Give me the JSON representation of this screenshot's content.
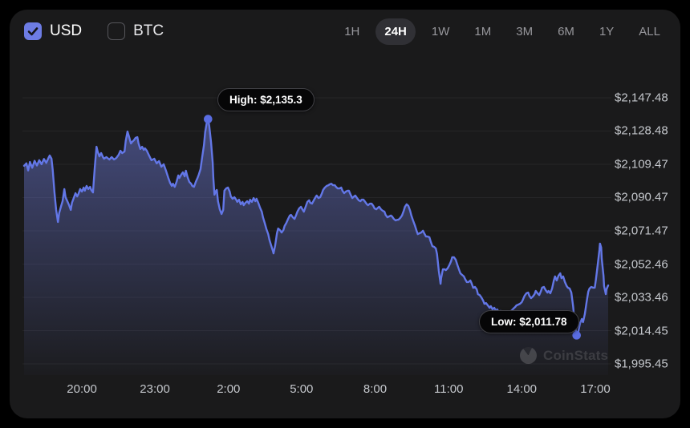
{
  "colors": {
    "page_bg": "#000000",
    "card_bg": "#1a1a1b",
    "accent": "#6d7ce4",
    "line": "#6377e7",
    "grid": "#252527",
    "axis_text": "#c4c7cc"
  },
  "header": {
    "currency_toggles": [
      {
        "label": "USD",
        "checked": true
      },
      {
        "label": "BTC",
        "checked": false
      }
    ],
    "range_buttons": [
      "1H",
      "24H",
      "1W",
      "1M",
      "3M",
      "6M",
      "1Y",
      "ALL"
    ],
    "active_range": "24H"
  },
  "watermark": {
    "text": "CoinStats"
  },
  "chart_data": {
    "type": "area",
    "grid": true,
    "legend": false,
    "y_axis": {
      "side": "right",
      "min": 1995.45,
      "max": 2147.48,
      "unit": "$"
    },
    "x_axis": {
      "window": "24H"
    },
    "y_ticks": [
      {
        "label": "$2,147.48",
        "value": 2147.48
      },
      {
        "label": "$2,128.48",
        "value": 2128.48
      },
      {
        "label": "$2,109.47",
        "value": 2109.47
      },
      {
        "label": "$2,090.47",
        "value": 2090.47
      },
      {
        "label": "$2,071.47",
        "value": 2071.47
      },
      {
        "label": "$2,052.46",
        "value": 2052.46
      },
      {
        "label": "$2,033.46",
        "value": 2033.46
      },
      {
        "label": "$2,014.45",
        "value": 2014.45
      },
      {
        "label": "$1,995.45",
        "value": 1995.45
      }
    ],
    "x_ticks": [
      {
        "label": "20:00",
        "f": 0.099
      },
      {
        "label": "23:00",
        "f": 0.224
      },
      {
        "label": "2:00",
        "f": 0.35
      },
      {
        "label": "5:00",
        "f": 0.475
      },
      {
        "label": "8:00",
        "f": 0.601
      },
      {
        "label": "11:00",
        "f": 0.727
      },
      {
        "label": "14:00",
        "f": 0.852
      },
      {
        "label": "17:00",
        "f": 0.978
      }
    ],
    "markers": [
      {
        "kind": "high",
        "label": "High: $2,135.3",
        "value": 2135.3,
        "f": 0.315
      },
      {
        "kind": "low",
        "label": "Low: $2,011.78",
        "value": 2011.78,
        "f": 0.946
      }
    ],
    "points": [
      [
        0.0,
        2108.6
      ],
      [
        0.004,
        2110.0
      ],
      [
        0.007,
        2106.0
      ],
      [
        0.01,
        2110.8
      ],
      [
        0.014,
        2107.5
      ],
      [
        0.018,
        2111.5
      ],
      [
        0.022,
        2108.8
      ],
      [
        0.026,
        2111.8
      ],
      [
        0.03,
        2109.5
      ],
      [
        0.034,
        2112.5
      ],
      [
        0.038,
        2110.3
      ],
      [
        0.042,
        2113.3
      ],
      [
        0.044,
        2114.5
      ],
      [
        0.047,
        2112.7
      ],
      [
        0.049,
        2106.3
      ],
      [
        0.052,
        2093.4
      ],
      [
        0.055,
        2083.4
      ],
      [
        0.058,
        2076.5
      ],
      [
        0.06,
        2081.5
      ],
      [
        0.063,
        2085.2
      ],
      [
        0.066,
        2088.4
      ],
      [
        0.069,
        2095.3
      ],
      [
        0.071,
        2090.7
      ],
      [
        0.074,
        2088.4
      ],
      [
        0.077,
        2086.1
      ],
      [
        0.08,
        2083.4
      ],
      [
        0.082,
        2087.5
      ],
      [
        0.085,
        2090.2
      ],
      [
        0.088,
        2093.0
      ],
      [
        0.091,
        2091.1
      ],
      [
        0.093,
        2092.5
      ],
      [
        0.096,
        2095.3
      ],
      [
        0.099,
        2093.9
      ],
      [
        0.102,
        2096.2
      ],
      [
        0.104,
        2094.4
      ],
      [
        0.107,
        2097.1
      ],
      [
        0.11,
        2095.3
      ],
      [
        0.113,
        2096.6
      ],
      [
        0.115,
        2094.8
      ],
      [
        0.118,
        2093.4
      ],
      [
        0.121,
        2107.6
      ],
      [
        0.124,
        2119.5
      ],
      [
        0.126,
        2116.8
      ],
      [
        0.129,
        2114.0
      ],
      [
        0.132,
        2115.9
      ],
      [
        0.135,
        2113.6
      ],
      [
        0.137,
        2112.7
      ],
      [
        0.141,
        2113.6
      ],
      [
        0.146,
        2112.2
      ],
      [
        0.15,
        2113.6
      ],
      [
        0.154,
        2112.2
      ],
      [
        0.158,
        2113.1
      ],
      [
        0.162,
        2114.9
      ],
      [
        0.165,
        2117.2
      ],
      [
        0.168,
        2115.9
      ],
      [
        0.172,
        2116.8
      ],
      [
        0.174,
        2122.8
      ],
      [
        0.177,
        2128.2
      ],
      [
        0.18,
        2125.0
      ],
      [
        0.183,
        2121.4
      ],
      [
        0.185,
        2122.3
      ],
      [
        0.188,
        2123.2
      ],
      [
        0.191,
        2124.6
      ],
      [
        0.194,
        2125.0
      ],
      [
        0.196,
        2121.4
      ],
      [
        0.199,
        2118.2
      ],
      [
        0.202,
        2119.5
      ],
      [
        0.205,
        2117.7
      ],
      [
        0.207,
        2118.6
      ],
      [
        0.21,
        2117.3
      ],
      [
        0.214,
        2114.5
      ],
      [
        0.218,
        2111.8
      ],
      [
        0.223,
        2112.7
      ],
      [
        0.227,
        2110.0
      ],
      [
        0.231,
        2111.3
      ],
      [
        0.235,
        2108.1
      ],
      [
        0.239,
        2109.5
      ],
      [
        0.243,
        2105.8
      ],
      [
        0.247,
        2101.7
      ],
      [
        0.25,
        2098.9
      ],
      [
        0.253,
        2097.1
      ],
      [
        0.255,
        2098.4
      ],
      [
        0.258,
        2096.6
      ],
      [
        0.261,
        2099.4
      ],
      [
        0.264,
        2103.1
      ],
      [
        0.266,
        2101.7
      ],
      [
        0.269,
        2103.5
      ],
      [
        0.272,
        2104.9
      ],
      [
        0.275,
        2102.6
      ],
      [
        0.277,
        2105.8
      ],
      [
        0.28,
        2102.1
      ],
      [
        0.283,
        2099.4
      ],
      [
        0.286,
        2098.4
      ],
      [
        0.288,
        2097.1
      ],
      [
        0.291,
        2096.6
      ],
      [
        0.294,
        2099.4
      ],
      [
        0.297,
        2101.7
      ],
      [
        0.299,
        2103.5
      ],
      [
        0.302,
        2106.7
      ],
      [
        0.305,
        2113.6
      ],
      [
        0.308,
        2120.4
      ],
      [
        0.31,
        2127.8
      ],
      [
        0.313,
        2133.7
      ],
      [
        0.315,
        2135.3
      ],
      [
        0.317,
        2131.4
      ],
      [
        0.32,
        2122.3
      ],
      [
        0.323,
        2110.4
      ],
      [
        0.324,
        2101.7
      ],
      [
        0.326,
        2092.1
      ],
      [
        0.328,
        2093.9
      ],
      [
        0.33,
        2094.8
      ],
      [
        0.332,
        2088.4
      ],
      [
        0.335,
        2083.8
      ],
      [
        0.338,
        2081.1
      ],
      [
        0.341,
        2083.4
      ],
      [
        0.343,
        2094.4
      ],
      [
        0.346,
        2095.7
      ],
      [
        0.349,
        2096.2
      ],
      [
        0.352,
        2093.9
      ],
      [
        0.354,
        2091.1
      ],
      [
        0.357,
        2089.8
      ],
      [
        0.36,
        2090.7
      ],
      [
        0.363,
        2089.3
      ],
      [
        0.365,
        2088.0
      ],
      [
        0.368,
        2089.3
      ],
      [
        0.371,
        2086.6
      ],
      [
        0.374,
        2088.0
      ],
      [
        0.376,
        2086.1
      ],
      [
        0.379,
        2087.5
      ],
      [
        0.382,
        2088.4
      ],
      [
        0.385,
        2087.0
      ],
      [
        0.387,
        2089.3
      ],
      [
        0.39,
        2088.0
      ],
      [
        0.393,
        2090.2
      ],
      [
        0.396,
        2088.4
      ],
      [
        0.398,
        2089.8
      ],
      [
        0.401,
        2087.5
      ],
      [
        0.404,
        2084.7
      ],
      [
        0.407,
        2082.4
      ],
      [
        0.409,
        2079.2
      ],
      [
        0.412,
        2076.0
      ],
      [
        0.415,
        2072.4
      ],
      [
        0.418,
        2069.6
      ],
      [
        0.42,
        2066.4
      ],
      [
        0.423,
        2063.2
      ],
      [
        0.426,
        2060.0
      ],
      [
        0.427,
        2058.6
      ],
      [
        0.43,
        2063.2
      ],
      [
        0.433,
        2070.1
      ],
      [
        0.435,
        2072.8
      ],
      [
        0.438,
        2071.9
      ],
      [
        0.441,
        2070.5
      ],
      [
        0.444,
        2071.9
      ],
      [
        0.446,
        2074.2
      ],
      [
        0.449,
        2076.0
      ],
      [
        0.452,
        2078.3
      ],
      [
        0.455,
        2080.2
      ],
      [
        0.457,
        2080.6
      ],
      [
        0.46,
        2079.2
      ],
      [
        0.463,
        2078.3
      ],
      [
        0.466,
        2080.6
      ],
      [
        0.468,
        2082.4
      ],
      [
        0.471,
        2084.3
      ],
      [
        0.474,
        2085.2
      ],
      [
        0.477,
        2083.4
      ],
      [
        0.479,
        2082.4
      ],
      [
        0.482,
        2085.2
      ],
      [
        0.485,
        2088.0
      ],
      [
        0.488,
        2088.9
      ],
      [
        0.49,
        2087.5
      ],
      [
        0.493,
        2087.0
      ],
      [
        0.496,
        2088.9
      ],
      [
        0.499,
        2090.7
      ],
      [
        0.501,
        2091.6
      ],
      [
        0.504,
        2090.2
      ],
      [
        0.507,
        2090.7
      ],
      [
        0.51,
        2093.0
      ],
      [
        0.512,
        2094.8
      ],
      [
        0.515,
        2096.2
      ],
      [
        0.518,
        2097.1
      ],
      [
        0.521,
        2097.5
      ],
      [
        0.523,
        2098.0
      ],
      [
        0.526,
        2098.4
      ],
      [
        0.529,
        2097.5
      ],
      [
        0.532,
        2097.5
      ],
      [
        0.534,
        2096.6
      ],
      [
        0.537,
        2095.7
      ],
      [
        0.54,
        2095.7
      ],
      [
        0.543,
        2096.2
      ],
      [
        0.545,
        2094.4
      ],
      [
        0.548,
        2093.0
      ],
      [
        0.551,
        2093.9
      ],
      [
        0.554,
        2094.4
      ],
      [
        0.556,
        2094.4
      ],
      [
        0.559,
        2092.1
      ],
      [
        0.562,
        2090.2
      ],
      [
        0.565,
        2091.1
      ],
      [
        0.567,
        2091.6
      ],
      [
        0.57,
        2090.2
      ],
      [
        0.573,
        2088.9
      ],
      [
        0.576,
        2088.4
      ],
      [
        0.578,
        2089.3
      ],
      [
        0.581,
        2089.3
      ],
      [
        0.584,
        2088.0
      ],
      [
        0.587,
        2086.6
      ],
      [
        0.589,
        2086.1
      ],
      [
        0.592,
        2087.0
      ],
      [
        0.595,
        2087.0
      ],
      [
        0.598,
        2085.7
      ],
      [
        0.6,
        2084.3
      ],
      [
        0.603,
        2083.8
      ],
      [
        0.606,
        2084.7
      ],
      [
        0.608,
        2085.2
      ],
      [
        0.611,
        2083.8
      ],
      [
        0.614,
        2082.9
      ],
      [
        0.617,
        2082.4
      ],
      [
        0.619,
        2080.6
      ],
      [
        0.622,
        2079.2
      ],
      [
        0.625,
        2079.7
      ],
      [
        0.628,
        2080.2
      ],
      [
        0.63,
        2079.7
      ],
      [
        0.633,
        2078.3
      ],
      [
        0.636,
        2077.4
      ],
      [
        0.639,
        2077.8
      ],
      [
        0.641,
        2077.8
      ],
      [
        0.644,
        2078.8
      ],
      [
        0.647,
        2080.2
      ],
      [
        0.65,
        2082.9
      ],
      [
        0.652,
        2085.2
      ],
      [
        0.655,
        2086.6
      ],
      [
        0.658,
        2085.7
      ],
      [
        0.661,
        2082.9
      ],
      [
        0.663,
        2080.2
      ],
      [
        0.666,
        2077.4
      ],
      [
        0.669,
        2074.7
      ],
      [
        0.672,
        2071.5
      ],
      [
        0.674,
        2069.6
      ],
      [
        0.677,
        2070.1
      ],
      [
        0.68,
        2070.5
      ],
      [
        0.683,
        2071.5
      ],
      [
        0.685,
        2070.1
      ],
      [
        0.688,
        2068.2
      ],
      [
        0.691,
        2068.2
      ],
      [
        0.694,
        2067.8
      ],
      [
        0.696,
        2065.5
      ],
      [
        0.699,
        2062.7
      ],
      [
        0.702,
        2062.3
      ],
      [
        0.705,
        2061.4
      ],
      [
        0.707,
        2058.2
      ],
      [
        0.71,
        2048.6
      ],
      [
        0.713,
        2041.2
      ],
      [
        0.714,
        2044.4
      ],
      [
        0.717,
        2049.5
      ],
      [
        0.72,
        2049.5
      ],
      [
        0.722,
        2049.0
      ],
      [
        0.725,
        2050.0
      ],
      [
        0.728,
        2051.8
      ],
      [
        0.731,
        2054.1
      ],
      [
        0.733,
        2056.4
      ],
      [
        0.736,
        2056.4
      ],
      [
        0.739,
        2055.0
      ],
      [
        0.742,
        2051.8
      ],
      [
        0.745,
        2049.0
      ],
      [
        0.747,
        2047.2
      ],
      [
        0.75,
        2046.3
      ],
      [
        0.753,
        2045.4
      ],
      [
        0.755,
        2044.0
      ],
      [
        0.758,
        2042.2
      ],
      [
        0.761,
        2042.2
      ],
      [
        0.764,
        2043.1
      ],
      [
        0.766,
        2041.7
      ],
      [
        0.769,
        2038.9
      ],
      [
        0.772,
        2039.4
      ],
      [
        0.775,
        2038.0
      ],
      [
        0.777,
        2035.3
      ],
      [
        0.78,
        2034.8
      ],
      [
        0.783,
        2033.4
      ],
      [
        0.786,
        2031.6
      ],
      [
        0.788,
        2029.8
      ],
      [
        0.791,
        2030.2
      ],
      [
        0.794,
        2028.9
      ],
      [
        0.797,
        2027.5
      ],
      [
        0.799,
        2028.4
      ],
      [
        0.802,
        2026.6
      ],
      [
        0.805,
        2027.5
      ],
      [
        0.808,
        2025.7
      ],
      [
        0.81,
        2026.6
      ],
      [
        0.813,
        2024.8
      ],
      [
        0.816,
        2025.7
      ],
      [
        0.819,
        2024.3
      ],
      [
        0.821,
        2025.2
      ],
      [
        0.824,
        2023.9
      ],
      [
        0.827,
        2024.8
      ],
      [
        0.83,
        2023.9
      ],
      [
        0.832,
        2025.2
      ],
      [
        0.835,
        2026.1
      ],
      [
        0.838,
        2027.1
      ],
      [
        0.841,
        2028.0
      ],
      [
        0.843,
        2028.9
      ],
      [
        0.846,
        2029.3
      ],
      [
        0.849,
        2029.8
      ],
      [
        0.852,
        2030.7
      ],
      [
        0.854,
        2032.1
      ],
      [
        0.857,
        2034.4
      ],
      [
        0.86,
        2035.8
      ],
      [
        0.863,
        2036.2
      ],
      [
        0.865,
        2034.4
      ],
      [
        0.868,
        2033.0
      ],
      [
        0.871,
        2033.9
      ],
      [
        0.874,
        2035.3
      ],
      [
        0.876,
        2037.1
      ],
      [
        0.879,
        2035.8
      ],
      [
        0.882,
        2034.8
      ],
      [
        0.885,
        2037.1
      ],
      [
        0.887,
        2039.0
      ],
      [
        0.89,
        2039.4
      ],
      [
        0.893,
        2037.6
      ],
      [
        0.896,
        2036.2
      ],
      [
        0.898,
        2037.1
      ],
      [
        0.901,
        2035.8
      ],
      [
        0.904,
        2038.5
      ],
      [
        0.907,
        2043.1
      ],
      [
        0.909,
        2045.4
      ],
      [
        0.912,
        2043.1
      ],
      [
        0.915,
        2045.8
      ],
      [
        0.918,
        2047.2
      ],
      [
        0.92,
        2044.4
      ],
      [
        0.923,
        2045.4
      ],
      [
        0.926,
        2042.2
      ],
      [
        0.929,
        2039.9
      ],
      [
        0.931,
        2039.0
      ],
      [
        0.934,
        2038.5
      ],
      [
        0.937,
        2036.2
      ],
      [
        0.94,
        2028.4
      ],
      [
        0.942,
        2021.1
      ],
      [
        0.945,
        2013.3
      ],
      [
        0.946,
        2011.78
      ],
      [
        0.949,
        2014.2
      ],
      [
        0.952,
        2018.8
      ],
      [
        0.955,
        2021.1
      ],
      [
        0.957,
        2019.3
      ],
      [
        0.96,
        2023.9
      ],
      [
        0.963,
        2030.7
      ],
      [
        0.966,
        2036.7
      ],
      [
        0.968,
        2038.5
      ],
      [
        0.971,
        2039.4
      ],
      [
        0.974,
        2039.0
      ],
      [
        0.977,
        2039.0
      ],
      [
        0.979,
        2043.5
      ],
      [
        0.982,
        2051.8
      ],
      [
        0.985,
        2060.5
      ],
      [
        0.986,
        2064.2
      ],
      [
        0.988,
        2061.9
      ],
      [
        0.989,
        2055.5
      ],
      [
        0.992,
        2045.8
      ],
      [
        0.993,
        2039.9
      ],
      [
        0.996,
        2035.3
      ],
      [
        0.997,
        2038.0
      ],
      [
        1.0,
        2040.3
      ]
    ]
  }
}
